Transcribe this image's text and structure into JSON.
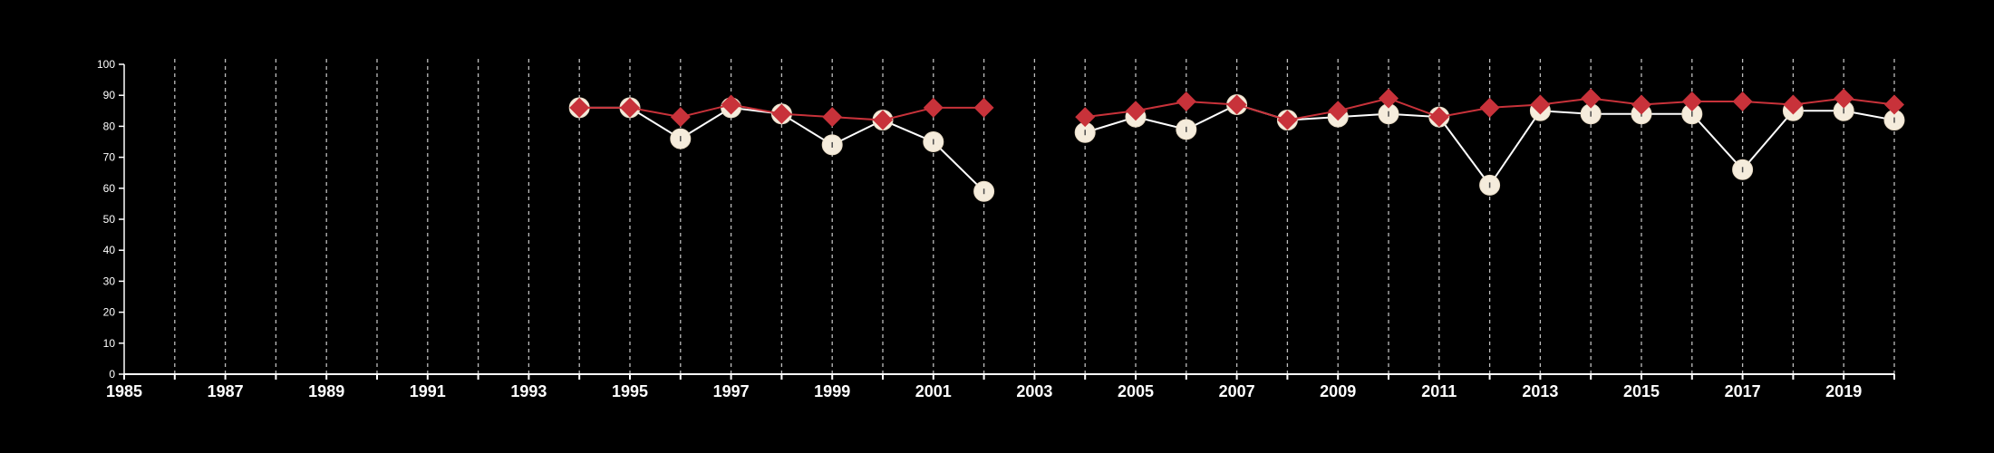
{
  "chart_data": {
    "type": "line",
    "title": "",
    "xlabel": "",
    "ylabel": "",
    "xlim": [
      1985,
      2020
    ],
    "ylim": [
      0,
      100
    ],
    "yticks": [
      0,
      10,
      20,
      30,
      40,
      50,
      60,
      70,
      80,
      90,
      100
    ],
    "xtick_labels": [
      "1985",
      "1987",
      "1989",
      "1991",
      "1993",
      "1995",
      "1997",
      "1999",
      "2001",
      "2003",
      "2005",
      "2007",
      "2009",
      "2011",
      "2013",
      "2015",
      "2017",
      "2019"
    ],
    "grid": "vertical dashed lines at every year",
    "legend": "none",
    "x": [
      1994,
      1995,
      1996,
      1997,
      1998,
      1999,
      2000,
      2001,
      2002,
      2003,
      2004,
      2005,
      2006,
      2007,
      2008,
      2009,
      2010,
      2011,
      2012,
      2013,
      2014,
      2015,
      2016,
      2017,
      2018,
      2019,
      2020
    ],
    "series": [
      {
        "color": "#ffffff",
        "marker": "circle",
        "marker_fill": "#f5ecdc",
        "values": [
          86,
          86,
          76,
          86,
          84,
          74,
          82,
          75,
          59,
          null,
          78,
          83,
          79,
          87,
          82,
          83,
          84,
          83,
          61,
          85,
          84,
          84,
          84,
          66,
          85,
          85,
          82
        ]
      },
      {
        "color": "#c8323a",
        "marker": "diamond",
        "marker_fill": "#c8323a",
        "values": [
          86,
          86,
          83,
          87,
          84,
          83,
          82,
          86,
          86,
          null,
          83,
          85,
          88,
          87,
          82,
          85,
          89,
          83,
          86,
          87,
          89,
          87,
          88,
          88,
          87,
          89,
          87
        ]
      }
    ]
  }
}
